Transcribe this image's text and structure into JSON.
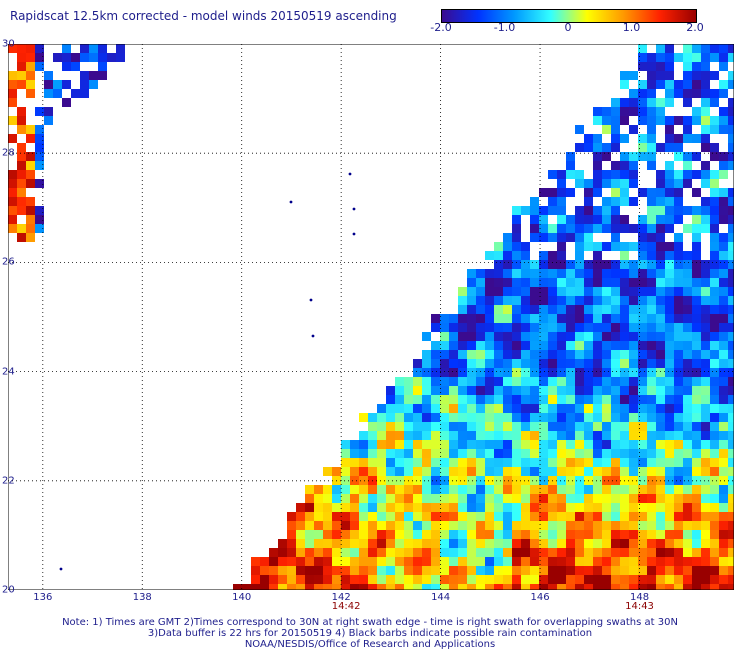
{
  "title": "Rapidscat 12.5km corrected - model winds 20150519 ascending",
  "colorbar": {
    "stops": [
      "#3b0b8f",
      "#0033ff",
      "#0099ff",
      "#33ffff",
      "#ffff00",
      "#ff9900",
      "#ff2200",
      "#990000"
    ],
    "labels": [
      {
        "value": -2.0,
        "text": "-2.0"
      },
      {
        "value": -1.0,
        "text": "-1.0"
      },
      {
        "value": 0,
        "text": "0"
      },
      {
        "value": 1.0,
        "text": "1.0"
      },
      {
        "value": 2.0,
        "text": "2.0"
      }
    ],
    "range": [
      -2.0,
      2.0
    ]
  },
  "map": {
    "lon_range": [
      135.3,
      149.9
    ],
    "lat_range": [
      20,
      30
    ],
    "lat_ticks": [
      {
        "value": 30,
        "text": "30"
      },
      {
        "value": 28,
        "text": "28"
      },
      {
        "value": 26,
        "text": "26"
      },
      {
        "value": 24,
        "text": "24"
      },
      {
        "value": 22,
        "text": "22"
      },
      {
        "value": 20,
        "text": "20"
      }
    ],
    "lon_ticks": [
      {
        "value": 136,
        "text": "136"
      },
      {
        "value": 138,
        "text": "138"
      },
      {
        "value": 140,
        "text": "140"
      },
      {
        "value": 142,
        "text": "142"
      },
      {
        "value": 144,
        "text": "144"
      },
      {
        "value": 146,
        "text": "146"
      },
      {
        "value": 148,
        "text": "148"
      }
    ],
    "time_labels": [
      {
        "lon": 142.1,
        "text": "14:42"
      },
      {
        "lon": 148.0,
        "text": "14:43"
      }
    ],
    "grid": true
  },
  "notes": {
    "line1": "Note: 1) Times are GMT 2)Times correspond to 30N at right swath edge - time is right swath for overlapping swaths at 30N",
    "line2": "3)Data buffer is 22 hrs for 20150519 4) Black barbs indicate possible rain contamination",
    "line3": "NOAA/NESDIS/Office of Research and Applications"
  }
}
